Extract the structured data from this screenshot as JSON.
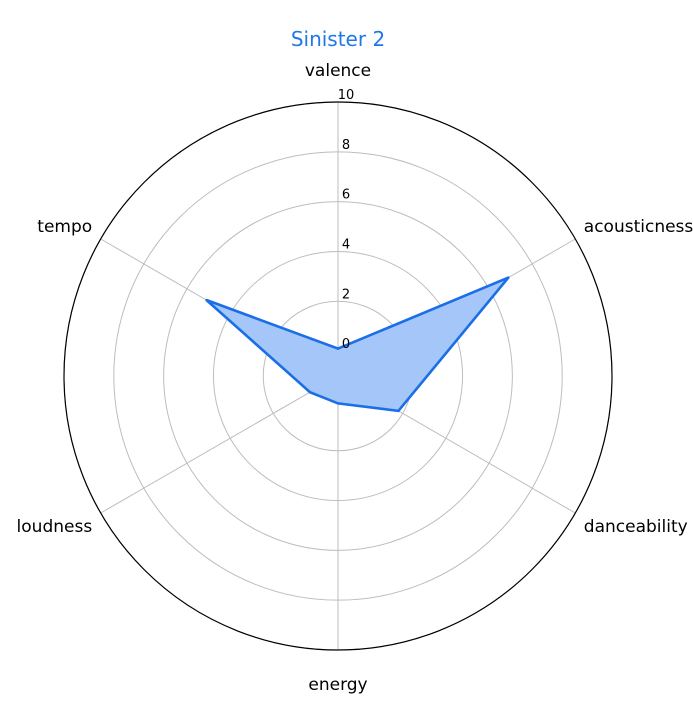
{
  "chart_data": {
    "type": "radar",
    "title": "Sinister 2",
    "axes": [
      "valence",
      "acousticness",
      "danceability",
      "energy",
      "loudness",
      "tempo"
    ],
    "series": [
      {
        "values": [
          0.1,
          6.9,
          1.8,
          0.1,
          0.3,
          5.1
        ]
      }
    ],
    "radial_ticks": [
      "0",
      "2",
      "4",
      "6",
      "8",
      "10"
    ],
    "rlim": [
      -1,
      10
    ],
    "grid": true,
    "colors": {
      "title": "#1f77e8",
      "line": "#1a6fe6",
      "fill": "#a4c6f9",
      "grid": "#bdbdbd",
      "frame": "#000000"
    }
  }
}
